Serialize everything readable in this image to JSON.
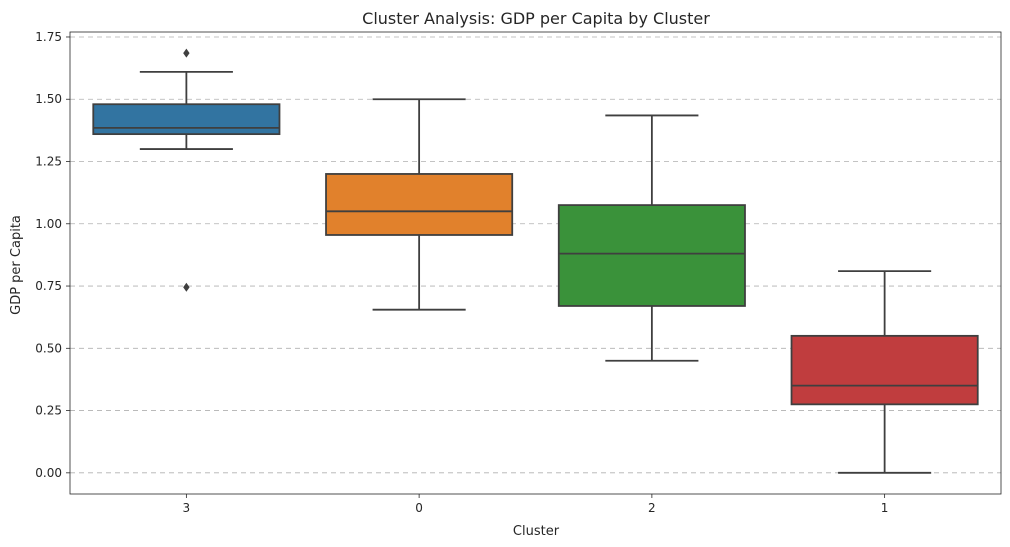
{
  "chart_data": {
    "type": "box",
    "title": "Cluster Analysis: GDP per Capita by Cluster",
    "xlabel": "Cluster",
    "ylabel": "GDP per Capita",
    "ylim": [
      -0.085,
      1.77
    ],
    "yticks": [
      0.0,
      0.25,
      0.5,
      0.75,
      1.0,
      1.25,
      1.5,
      1.75
    ],
    "ytick_labels": [
      "0.00",
      "0.25",
      "0.50",
      "0.75",
      "1.00",
      "1.25",
      "1.50",
      "1.75"
    ],
    "grid": "y-dashed",
    "categories": [
      "3",
      "0",
      "2",
      "1"
    ],
    "boxes": [
      {
        "category": "3",
        "color": "#3274a1",
        "whisker_low": 1.3,
        "q1": 1.36,
        "median": 1.385,
        "q3": 1.48,
        "whisker_high": 1.61,
        "outliers": [
          1.685,
          0.745
        ]
      },
      {
        "category": "0",
        "color": "#e1812c",
        "whisker_low": 0.655,
        "q1": 0.955,
        "median": 1.05,
        "q3": 1.2,
        "whisker_high": 1.5,
        "outliers": []
      },
      {
        "category": "2",
        "color": "#3a923a",
        "whisker_low": 0.45,
        "q1": 0.67,
        "median": 0.88,
        "q3": 1.075,
        "whisker_high": 1.435,
        "outliers": []
      },
      {
        "category": "1",
        "color": "#c03d3e",
        "whisker_low": 0.0,
        "q1": 0.275,
        "median": 0.35,
        "q3": 0.55,
        "whisker_high": 0.81,
        "outliers": []
      }
    ]
  }
}
